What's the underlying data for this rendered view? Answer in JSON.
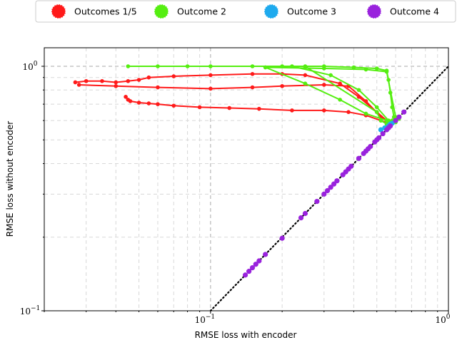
{
  "chart_data": {
    "type": "line",
    "xlabel": "RMSE loss with encoder",
    "ylabel": "RMSE loss without encoder",
    "xscale": "log",
    "yscale": "log",
    "xlim": [
      0.02,
      1.0
    ],
    "ylim": [
      0.1,
      1.0
    ],
    "grid": true,
    "legend_position": "top",
    "x_ticks": [
      {
        "value": 0.1,
        "base": "10",
        "exp": "−1"
      },
      {
        "value": 1.0,
        "base": "10",
        "exp": "0"
      }
    ],
    "y_ticks": [
      {
        "value": 0.1,
        "base": "10",
        "exp": "−1"
      },
      {
        "value": 1.0,
        "base": "10",
        "exp": "0"
      }
    ],
    "reference_line": {
      "style": "dotted",
      "color": "#000000",
      "points": [
        [
          0.1,
          0.1
        ],
        [
          1.0,
          1.0
        ]
      ]
    },
    "series": [
      {
        "name": "Outcomes 1/5",
        "color": "#ff1a1a",
        "paths": [
          [
            [
              0.027,
              0.86
            ],
            [
              0.03,
              0.87
            ],
            [
              0.035,
              0.87
            ],
            [
              0.04,
              0.86
            ],
            [
              0.045,
              0.87
            ],
            [
              0.05,
              0.88
            ],
            [
              0.055,
              0.9
            ],
            [
              0.07,
              0.91
            ],
            [
              0.1,
              0.92
            ],
            [
              0.15,
              0.93
            ],
            [
              0.2,
              0.93
            ],
            [
              0.25,
              0.92
            ],
            [
              0.35,
              0.85
            ],
            [
              0.42,
              0.75
            ],
            [
              0.5,
              0.65
            ],
            [
              0.55,
              0.6
            ],
            [
              0.57,
              0.58
            ]
          ],
          [
            [
              0.028,
              0.84
            ],
            [
              0.04,
              0.83
            ],
            [
              0.06,
              0.82
            ],
            [
              0.1,
              0.81
            ],
            [
              0.15,
              0.82
            ],
            [
              0.2,
              0.83
            ],
            [
              0.3,
              0.84
            ],
            [
              0.38,
              0.83
            ],
            [
              0.45,
              0.72
            ],
            [
              0.52,
              0.62
            ],
            [
              0.57,
              0.58
            ]
          ],
          [
            [
              0.044,
              0.75
            ],
            [
              0.045,
              0.73
            ],
            [
              0.046,
              0.72
            ],
            [
              0.05,
              0.71
            ],
            [
              0.055,
              0.705
            ],
            [
              0.06,
              0.7
            ],
            [
              0.07,
              0.69
            ],
            [
              0.09,
              0.68
            ],
            [
              0.12,
              0.675
            ],
            [
              0.16,
              0.67
            ],
            [
              0.22,
              0.66
            ],
            [
              0.3,
              0.66
            ],
            [
              0.38,
              0.65
            ],
            [
              0.45,
              0.63
            ],
            [
              0.52,
              0.6
            ],
            [
              0.57,
              0.58
            ]
          ]
        ]
      },
      {
        "name": "Outcome 2",
        "color": "#55ee11",
        "paths": [
          [
            [
              0.045,
              1.0
            ],
            [
              0.06,
              1.0
            ],
            [
              0.08,
              1.0
            ],
            [
              0.1,
              1.0
            ],
            [
              0.15,
              1.0
            ],
            [
              0.2,
              1.0
            ],
            [
              0.3,
              1.0
            ],
            [
              0.4,
              0.99
            ],
            [
              0.5,
              0.98
            ],
            [
              0.55,
              0.96
            ],
            [
              0.56,
              0.88
            ],
            [
              0.57,
              0.78
            ],
            [
              0.58,
              0.68
            ],
            [
              0.59,
              0.62
            ],
            [
              0.6,
              0.6
            ]
          ],
          [
            [
              0.17,
              0.99
            ],
            [
              0.3,
              0.98
            ],
            [
              0.45,
              0.97
            ],
            [
              0.55,
              0.95
            ],
            [
              0.6,
              0.62
            ]
          ],
          [
            [
              0.17,
              0.99
            ],
            [
              0.25,
              0.85
            ],
            [
              0.35,
              0.73
            ],
            [
              0.45,
              0.64
            ],
            [
              0.55,
              0.6
            ]
          ],
          [
            [
              0.22,
              1.0
            ],
            [
              0.32,
              0.92
            ],
            [
              0.42,
              0.8
            ],
            [
              0.5,
              0.68
            ],
            [
              0.56,
              0.6
            ],
            [
              0.6,
              0.59
            ]
          ],
          [
            [
              0.25,
              1.0
            ],
            [
              0.5,
              0.65
            ],
            [
              0.52,
              0.6
            ],
            [
              0.55,
              0.58
            ],
            [
              0.58,
              0.6
            ],
            [
              0.62,
              0.61
            ]
          ]
        ]
      },
      {
        "name": "Outcome 3",
        "color": "#1eaaee",
        "points": [
          [
            0.52,
            0.55
          ],
          [
            0.54,
            0.56
          ],
          [
            0.56,
            0.57
          ],
          [
            0.57,
            0.58
          ],
          [
            0.58,
            0.585
          ]
        ]
      },
      {
        "name": "Outcome 4",
        "color": "#9922dd",
        "points": [
          [
            0.14,
            0.14
          ],
          [
            0.145,
            0.145
          ],
          [
            0.15,
            0.15
          ],
          [
            0.155,
            0.155
          ],
          [
            0.16,
            0.16
          ],
          [
            0.17,
            0.17
          ],
          [
            0.2,
            0.198
          ],
          [
            0.24,
            0.24
          ],
          [
            0.25,
            0.25
          ],
          [
            0.28,
            0.28
          ],
          [
            0.3,
            0.3
          ],
          [
            0.31,
            0.31
          ],
          [
            0.32,
            0.32
          ],
          [
            0.33,
            0.33
          ],
          [
            0.34,
            0.34
          ],
          [
            0.36,
            0.36
          ],
          [
            0.37,
            0.37
          ],
          [
            0.38,
            0.38
          ],
          [
            0.39,
            0.39
          ],
          [
            0.42,
            0.42
          ],
          [
            0.44,
            0.44
          ],
          [
            0.45,
            0.45
          ],
          [
            0.46,
            0.46
          ],
          [
            0.47,
            0.47
          ],
          [
            0.49,
            0.49
          ],
          [
            0.5,
            0.5
          ],
          [
            0.51,
            0.51
          ],
          [
            0.53,
            0.53
          ],
          [
            0.55,
            0.55
          ],
          [
            0.56,
            0.56
          ],
          [
            0.57,
            0.57
          ],
          [
            0.6,
            0.6
          ],
          [
            0.62,
            0.62
          ],
          [
            0.65,
            0.65
          ]
        ]
      }
    ]
  }
}
